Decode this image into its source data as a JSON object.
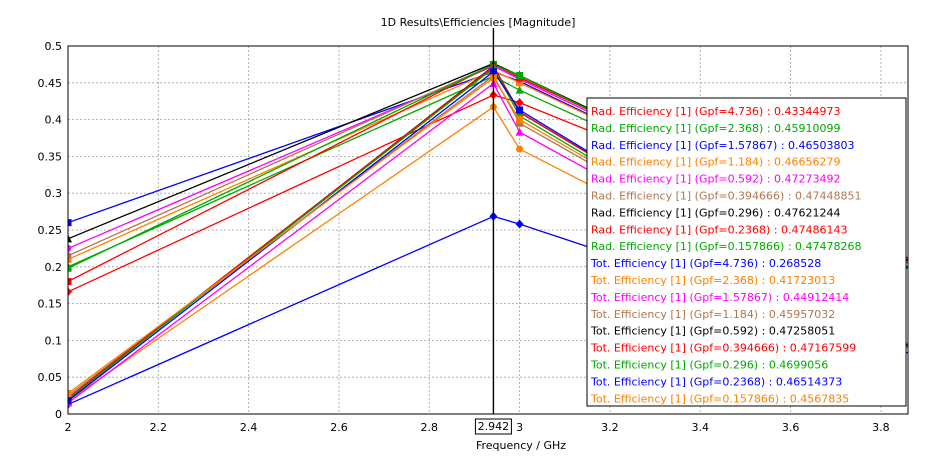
{
  "chart_data": {
    "type": "line",
    "title": "1D Results\\Efficiencies [Magnitude]",
    "xlabel": "Frequency / GHz",
    "ylabel": "",
    "xlim": [
      2.0,
      3.86
    ],
    "ylim": [
      0,
      0.5
    ],
    "x_ticks": [
      "2",
      "2.2",
      "2.4",
      "2.6",
      "2.8",
      "3",
      "3.2",
      "3.4",
      "3.6",
      "3.8"
    ],
    "y_ticks": [
      "0",
      "0.05",
      "0.1",
      "0.15",
      "0.2",
      "0.25",
      "0.3",
      "0.35",
      "0.4",
      "0.45",
      "0.5"
    ],
    "marker_readout": "2.942",
    "marker_x": 2.942,
    "grid": true,
    "legend_position": "right",
    "series": [
      {
        "label": "Rad. Efficiency [1] (Gpf=4.736) : 0.43344973",
        "color": "#ff0000",
        "marker": "diamond",
        "values": [
          [
            2.0,
            0.166
          ],
          [
            2.942,
            0.4334
          ],
          [
            3.0,
            0.423
          ],
          [
            3.86,
            0.21
          ]
        ]
      },
      {
        "label": "Rad. Efficiency [1] (Gpf=2.368) : 0.45910099",
        "color": "#00aa00",
        "marker": "triangle",
        "values": [
          [
            2.0,
            0.2
          ],
          [
            2.942,
            0.4591
          ],
          [
            3.0,
            0.44
          ],
          [
            3.86,
            0.2
          ]
        ]
      },
      {
        "label": "Rad. Efficiency [1] (Gpf=1.57867) : 0.46503803",
        "color": "#0000ff",
        "marker": "square",
        "values": [
          [
            2.0,
            0.26
          ],
          [
            2.942,
            0.465
          ],
          [
            3.0,
            0.452
          ],
          [
            3.86,
            0.198
          ]
        ]
      },
      {
        "label": "Rad. Efficiency [1] (Gpf=1.184) : 0.46656279",
        "color": "#ff8000",
        "marker": "square",
        "values": [
          [
            2.0,
            0.21
          ],
          [
            2.942,
            0.4666
          ],
          [
            3.0,
            0.45
          ],
          [
            3.86,
            0.2
          ]
        ]
      },
      {
        "label": "Rad. Efficiency [1] (Gpf=0.592) : 0.47273492",
        "color": "#ff00ff",
        "marker": "circle",
        "values": [
          [
            2.0,
            0.225
          ],
          [
            2.942,
            0.4727
          ],
          [
            3.0,
            0.455
          ],
          [
            3.86,
            0.205
          ]
        ]
      },
      {
        "label": "Rad. Efficiency [1] (Gpf=0.394666) : 0.47448851",
        "color": "#b07850",
        "marker": "circle",
        "values": [
          [
            2.0,
            0.215
          ],
          [
            2.942,
            0.4745
          ],
          [
            3.0,
            0.458
          ],
          [
            3.86,
            0.205
          ]
        ]
      },
      {
        "label": "Rad. Efficiency [1] (Gpf=0.296) : 0.47621244",
        "color": "#000000",
        "marker": "triangle",
        "values": [
          [
            2.0,
            0.238
          ],
          [
            2.942,
            0.4762
          ],
          [
            3.0,
            0.46
          ],
          [
            3.86,
            0.208
          ]
        ]
      },
      {
        "label": "Rad. Efficiency [1] (Gpf=0.2368) : 0.47486143",
        "color": "#ff0000",
        "marker": "square",
        "values": [
          [
            2.0,
            0.18
          ],
          [
            2.942,
            0.4749
          ],
          [
            3.0,
            0.457
          ],
          [
            3.86,
            0.212
          ]
        ]
      },
      {
        "label": "Rad. Efficiency [1] (Gpf=0.157866) : 0.47478268",
        "color": "#00aa00",
        "marker": "square",
        "values": [
          [
            2.0,
            0.198
          ],
          [
            2.942,
            0.4748
          ],
          [
            3.0,
            0.46
          ],
          [
            3.86,
            0.2
          ]
        ]
      },
      {
        "label": "Tot. Efficiency [1] (Gpf=4.736) : 0.268528",
        "color": "#0000ff",
        "marker": "diamond",
        "values": [
          [
            2.0,
            0.013
          ],
          [
            2.942,
            0.2685
          ],
          [
            3.0,
            0.258
          ],
          [
            3.86,
            0.083
          ]
        ]
      },
      {
        "label": "Tot. Efficiency [1] (Gpf=2.368) : 0.41723013",
        "color": "#ff8000",
        "marker": "circle",
        "values": [
          [
            2.0,
            0.018
          ],
          [
            2.942,
            0.4172
          ],
          [
            3.0,
            0.36
          ],
          [
            3.86,
            0.09
          ]
        ]
      },
      {
        "label": "Tot. Efficiency [1] (Gpf=1.57867) : 0.44912414",
        "color": "#ff00ff",
        "marker": "triangle",
        "values": [
          [
            2.0,
            0.015
          ],
          [
            2.942,
            0.4491
          ],
          [
            3.0,
            0.383
          ],
          [
            3.86,
            0.093
          ]
        ]
      },
      {
        "label": "Tot. Efficiency [1] (Gpf=1.184) : 0.45957032",
        "color": "#b07850",
        "marker": "square",
        "values": [
          [
            2.0,
            0.025
          ],
          [
            2.942,
            0.4596
          ],
          [
            3.0,
            0.395
          ],
          [
            3.86,
            0.095
          ]
        ]
      },
      {
        "label": "Tot. Efficiency [1] (Gpf=0.592) : 0.47258051",
        "color": "#000000",
        "marker": "diamond",
        "values": [
          [
            2.0,
            0.02
          ],
          [
            2.942,
            0.4726
          ],
          [
            3.0,
            0.41
          ],
          [
            3.86,
            0.095
          ]
        ]
      },
      {
        "label": "Tot. Efficiency [1] (Gpf=0.394666) : 0.47167599",
        "color": "#ff0000",
        "marker": "circle",
        "values": [
          [
            2.0,
            0.022
          ],
          [
            2.942,
            0.4717
          ],
          [
            3.0,
            0.41
          ],
          [
            3.86,
            0.093
          ]
        ]
      },
      {
        "label": "Tot. Efficiency [1] (Gpf=0.296) : 0.4699056",
        "color": "#00aa00",
        "marker": "diamond",
        "values": [
          [
            2.0,
            0.02
          ],
          [
            2.942,
            0.4699
          ],
          [
            3.0,
            0.405
          ],
          [
            3.86,
            0.092
          ]
        ]
      },
      {
        "label": "Tot. Efficiency [1] (Gpf=0.2368) : 0.46514373",
        "color": "#0000ff",
        "marker": "square",
        "values": [
          [
            2.0,
            0.018
          ],
          [
            2.942,
            0.4651
          ],
          [
            3.0,
            0.413
          ],
          [
            3.86,
            0.093
          ]
        ]
      },
      {
        "label": "Tot. Efficiency [1] (Gpf=0.157866) : 0.4567835",
        "color": "#ff8000",
        "marker": "square",
        "values": [
          [
            2.0,
            0.028
          ],
          [
            2.942,
            0.4568
          ],
          [
            3.0,
            0.4
          ],
          [
            3.86,
            0.095
          ]
        ]
      }
    ]
  }
}
